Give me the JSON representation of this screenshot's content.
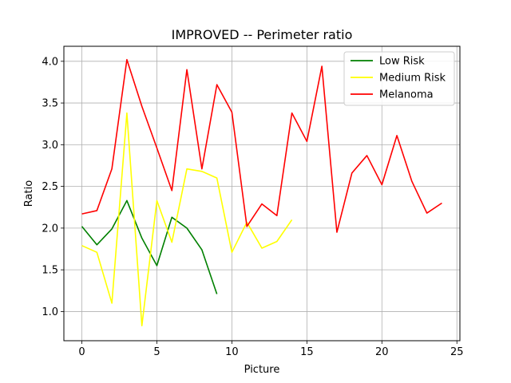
{
  "chart_data": {
    "type": "line",
    "title": "IMPROVED -- Perimeter ratio",
    "xlabel": "Picture",
    "ylabel": "Ratio",
    "xlim": [
      -1.2,
      25.2
    ],
    "ylim": [
      0.65,
      4.18
    ],
    "xticks": [
      0,
      5,
      10,
      15,
      20,
      25
    ],
    "xtick_labels": [
      "0",
      "5",
      "10",
      "15",
      "20",
      "25"
    ],
    "yticks": [
      1.0,
      1.5,
      2.0,
      2.5,
      3.0,
      3.5,
      4.0
    ],
    "ytick_labels": [
      "1.0",
      "1.5",
      "2.0",
      "2.5",
      "3.0",
      "3.5",
      "4.0"
    ],
    "grid": true,
    "legend_position": "top-right",
    "series": [
      {
        "name": "Low Risk",
        "color": "#008000",
        "x": [
          0,
          1,
          2,
          3,
          4,
          5,
          6,
          7,
          8,
          9
        ],
        "values": [
          2.02,
          1.8,
          1.99,
          2.33,
          1.88,
          1.55,
          2.13,
          2.0,
          1.74,
          1.21
        ]
      },
      {
        "name": "Medium Risk",
        "color": "#ffff00",
        "x": [
          0,
          1,
          2,
          3,
          4,
          5,
          6,
          7,
          8,
          9,
          10,
          11,
          12,
          13,
          14
        ],
        "values": [
          1.79,
          1.71,
          1.1,
          3.38,
          0.83,
          2.33,
          1.83,
          2.71,
          2.68,
          2.6,
          1.71,
          2.07,
          1.76,
          1.84,
          2.1
        ]
      },
      {
        "name": "Melanoma",
        "color": "#ff0000",
        "x": [
          0,
          1,
          2,
          3,
          4,
          5,
          6,
          7,
          8,
          9,
          10,
          11,
          12,
          13,
          14,
          15,
          16,
          17,
          18,
          19,
          20,
          21,
          22,
          23,
          24
        ],
        "values": [
          2.17,
          2.21,
          2.71,
          4.02,
          3.46,
          2.96,
          2.45,
          3.9,
          2.71,
          3.72,
          3.39,
          2.02,
          2.29,
          2.15,
          3.38,
          3.04,
          3.94,
          1.95,
          2.66,
          2.87,
          2.52,
          3.11,
          2.56,
          2.18,
          2.3
        ]
      }
    ]
  }
}
